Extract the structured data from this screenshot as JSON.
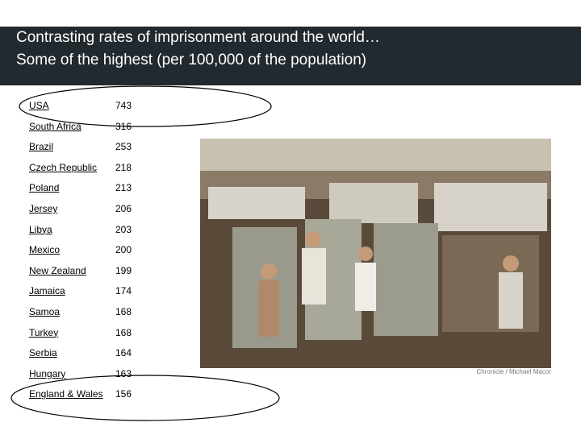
{
  "header": {
    "title": [
      "Contrasting rates of imprisonment around the world…",
      "Some of the highest (per 100,000 of the population)"
    ]
  },
  "table": {
    "rows": [
      [
        "USA",
        743
      ],
      [
        "South Africa",
        316
      ],
      [
        "Brazil",
        253
      ],
      [
        "Czech Republic",
        218
      ],
      [
        "Poland",
        213
      ],
      [
        "Jersey",
        206
      ],
      [
        "Libya",
        203
      ],
      [
        "Mexico",
        200
      ],
      [
        "New Zealand",
        199
      ],
      [
        "Jamaica",
        174
      ],
      [
        "Samoa",
        168
      ],
      [
        "Turkey",
        168
      ],
      [
        "Serbia",
        164
      ],
      [
        "Hungary",
        163
      ],
      [
        "England & Wales",
        156
      ]
    ]
  },
  "photo": {
    "caption": "Chronicle / Michael Macor"
  }
}
